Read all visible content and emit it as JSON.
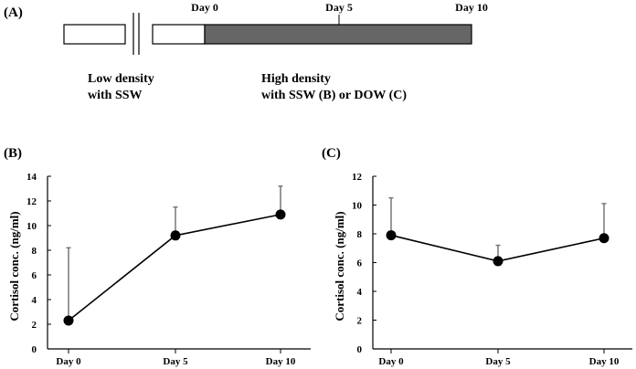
{
  "panel_a": {
    "label": "(A)",
    "days": [
      "Day 0",
      "Day 5",
      "Day 10"
    ],
    "phase1_line1": "Low density",
    "phase1_line2": "with SSW",
    "phase2_line1": "High density",
    "phase2_line2": "with SSW (B) or DOW (C)",
    "shade_color": "#666666"
  },
  "chart_data": [
    {
      "panel": "(B)",
      "type": "line",
      "categories": [
        "Day 0",
        "Day 5",
        "Day 10"
      ],
      "values": [
        2.3,
        9.2,
        10.9
      ],
      "error_upper": [
        8.2,
        11.5,
        13.2
      ],
      "ylabel": "Cortisol conc. (ng/ml)",
      "xlabel": "",
      "ylim": [
        0,
        14
      ],
      "yticks": [
        0,
        2,
        4,
        6,
        8,
        10,
        12,
        14
      ],
      "grid": false
    },
    {
      "panel": "(C)",
      "type": "line",
      "categories": [
        "Day 0",
        "Day 5",
        "Day 10"
      ],
      "values": [
        7.9,
        6.1,
        7.7
      ],
      "error_upper": [
        10.5,
        7.2,
        10.1
      ],
      "ylabel": "Cortisol conc. (ng/ml)",
      "xlabel": "",
      "ylim": [
        0,
        12
      ],
      "yticks": [
        0,
        2,
        4,
        6,
        8,
        10,
        12
      ],
      "grid": false
    }
  ]
}
